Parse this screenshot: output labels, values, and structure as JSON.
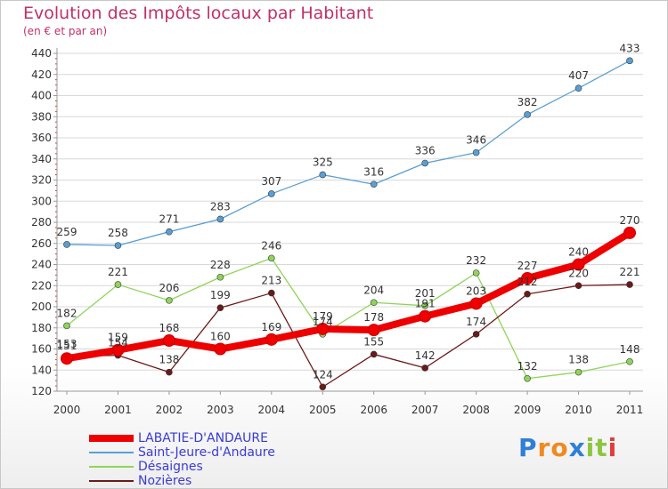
{
  "chart_data": {
    "type": "line",
    "title": "Evolution des Impôts locaux par Habitant",
    "subtitle": "(en € et par an)",
    "xlabel": "",
    "ylabel": "",
    "categories": [
      "2000",
      "2001",
      "2002",
      "2003",
      "2004",
      "2005",
      "2006",
      "2007",
      "2008",
      "2009",
      "2010",
      "2011"
    ],
    "ylim": [
      120,
      440
    ],
    "yticks": [
      120,
      140,
      160,
      180,
      200,
      220,
      240,
      260,
      280,
      300,
      320,
      340,
      360,
      380,
      400,
      420,
      440
    ],
    "series": [
      {
        "name": "LABATIE-D'ANDAURE",
        "color": "#ee0000",
        "values": [
          151,
          159,
          168,
          160,
          169,
          179,
          178,
          191,
          203,
          227,
          240,
          270
        ]
      },
      {
        "name": "Saint-Jeure-d'Andaure",
        "color": "#5a9fd4",
        "values": [
          259,
          258,
          271,
          283,
          307,
          325,
          316,
          336,
          346,
          382,
          407,
          433
        ]
      },
      {
        "name": "Désaignes",
        "color": "#8fd45a",
        "values": [
          182,
          221,
          206,
          228,
          246,
          174,
          204,
          201,
          232,
          132,
          138,
          148
        ]
      },
      {
        "name": "Nozières",
        "color": "#6b1a1a",
        "values": [
          153,
          154,
          138,
          199,
          213,
          124,
          155,
          142,
          174,
          212,
          220,
          221
        ]
      }
    ]
  },
  "logo": {
    "text": "Proxiti",
    "letters": [
      "P",
      "r",
      "o",
      "x",
      "i",
      "t",
      "i"
    ],
    "colors": [
      "#2f7fd8",
      "#f08a1e",
      "#f08a1e",
      "#2f7fd8",
      "#8cc63f",
      "#8cc63f",
      "#e23b3b"
    ]
  }
}
